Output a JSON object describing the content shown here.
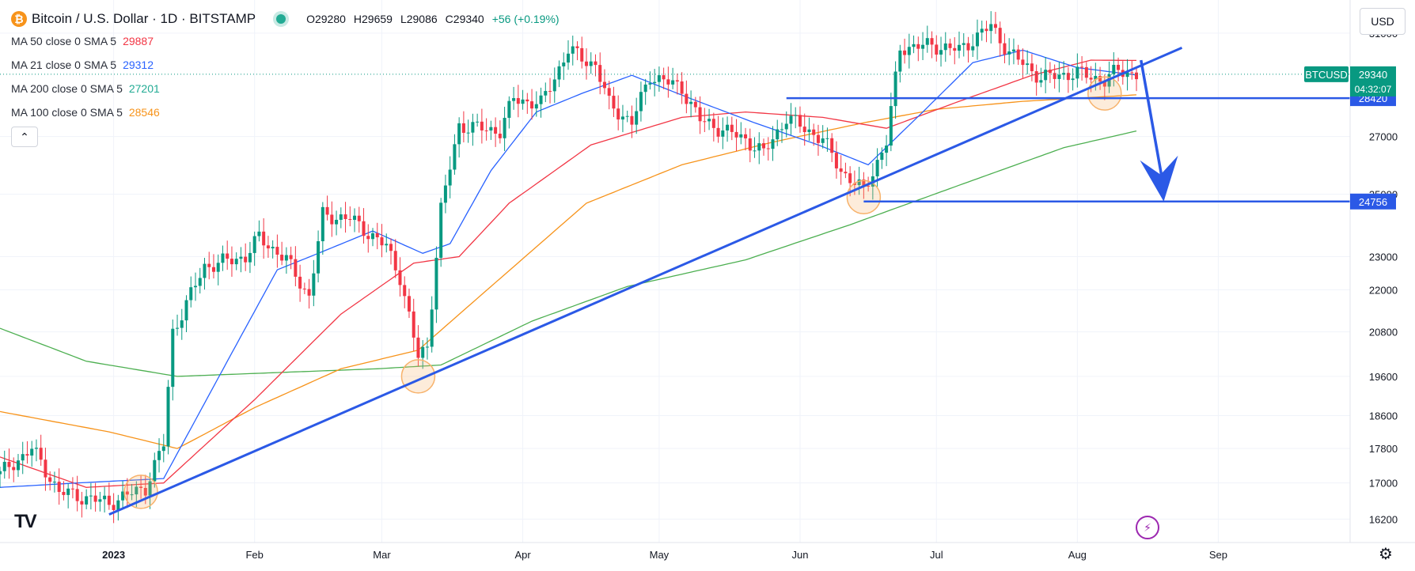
{
  "header": {
    "title": "Bitcoin / U.S. Dollar · 1D · BITSTAMP",
    "coin_icon": "bitcoin-icon",
    "ohlc": {
      "open": "O29280",
      "high": "H29659",
      "low": "L29086",
      "close": "C29340",
      "change": "+56 (+0.19%)"
    }
  },
  "legend": [
    {
      "label": "MA 50 close 0 SMA 5",
      "value": "29887",
      "color": "#f23645"
    },
    {
      "label": "MA 21 close 0 SMA 5",
      "value": "29312",
      "color": "#2962ff"
    },
    {
      "label": "MA 200 close 0 SMA 5",
      "value": "27201",
      "color": "#22ab94"
    },
    {
      "label": "MA 100 close 0 SMA 5",
      "value": "28546",
      "color": "#f7931a"
    }
  ],
  "currency": "USD",
  "colors": {
    "up": "#089981",
    "down": "#f23645",
    "ma21": "#2962ff",
    "ma50": "#f23645",
    "ma100": "#f7931a",
    "ma200": "#4caf50",
    "drawing": "#2b59e6",
    "highlight": "#f7b26b"
  },
  "chart_data": {
    "type": "candlestick",
    "x_range": [
      "2022-12-07",
      "2023-09-30"
    ],
    "y_range": [
      15700,
      32400
    ],
    "y_scale": "log",
    "y_ticks": [
      16200,
      17000,
      17800,
      18600,
      19600,
      20800,
      22000,
      23000,
      25000,
      27000,
      31000
    ],
    "x_ticks": [
      {
        "label": "2023",
        "date": "2023-01-01"
      },
      {
        "label": "Feb",
        "date": "2023-02-01"
      },
      {
        "label": "Mar",
        "date": "2023-03-01"
      },
      {
        "label": "Apr",
        "date": "2023-04-01"
      },
      {
        "label": "May",
        "date": "2023-05-01"
      },
      {
        "label": "Jun",
        "date": "2023-06-01"
      },
      {
        "label": "Jul",
        "date": "2023-07-01"
      },
      {
        "label": "Aug",
        "date": "2023-08-01"
      },
      {
        "label": "Sep",
        "date": "2023-09-01"
      }
    ],
    "anchors": [
      [
        "2022-12-07",
        17200
      ],
      [
        "2022-12-14",
        17800
      ],
      [
        "2022-12-20",
        16800
      ],
      [
        "2022-12-31",
        16550
      ],
      [
        "2023-01-08",
        16900
      ],
      [
        "2023-01-12",
        17900
      ],
      [
        "2023-01-14",
        20800
      ],
      [
        "2023-01-21",
        22700
      ],
      [
        "2023-01-30",
        23000
      ],
      [
        "2023-02-02",
        23600
      ],
      [
        "2023-02-08",
        22900
      ],
      [
        "2023-02-13",
        21800
      ],
      [
        "2023-02-16",
        24300
      ],
      [
        "2023-02-22",
        24200
      ],
      [
        "2023-03-02",
        23300
      ],
      [
        "2023-03-05",
        22400
      ],
      [
        "2023-03-09",
        20100
      ],
      [
        "2023-03-11",
        20400
      ],
      [
        "2023-03-14",
        24500
      ],
      [
        "2023-03-18",
        27400
      ],
      [
        "2023-03-27",
        27200
      ],
      [
        "2023-03-30",
        28400
      ],
      [
        "2023-04-05",
        28200
      ],
      [
        "2023-04-11",
        30300
      ],
      [
        "2023-04-17",
        29700
      ],
      [
        "2023-04-20",
        28200
      ],
      [
        "2023-04-25",
        27500
      ],
      [
        "2023-04-29",
        29300
      ],
      [
        "2023-05-06",
        28800
      ],
      [
        "2023-05-10",
        27600
      ],
      [
        "2023-05-20",
        26900
      ],
      [
        "2023-05-24",
        26400
      ],
      [
        "2023-05-29",
        27700
      ],
      [
        "2023-06-06",
        26900
      ],
      [
        "2023-06-10",
        25800
      ],
      [
        "2023-06-15",
        25100
      ],
      [
        "2023-06-20",
        26800
      ],
      [
        "2023-06-23",
        30400
      ],
      [
        "2023-06-30",
        30500
      ],
      [
        "2023-07-06",
        30300
      ],
      [
        "2023-07-13",
        31300
      ],
      [
        "2023-07-17",
        30200
      ],
      [
        "2023-07-24",
        29200
      ],
      [
        "2023-08-01",
        29400
      ],
      [
        "2023-08-07",
        29100
      ],
      [
        "2023-08-10",
        29500
      ],
      [
        "2023-08-14",
        29340
      ]
    ],
    "moving_averages": {
      "ma21": [
        [
          "2022-12-07",
          16900
        ],
        [
          "2022-12-24",
          17000
        ],
        [
          "2023-01-12",
          17100
        ],
        [
          "2023-01-26",
          20000
        ],
        [
          "2023-02-06",
          22600
        ],
        [
          "2023-02-15",
          23100
        ],
        [
          "2023-02-27",
          23800
        ],
        [
          "2023-03-10",
          23100
        ],
        [
          "2023-03-16",
          23400
        ],
        [
          "2023-03-25",
          25800
        ],
        [
          "2023-04-04",
          27900
        ],
        [
          "2023-04-14",
          28600
        ],
        [
          "2023-04-25",
          29300
        ],
        [
          "2023-05-08",
          28400
        ],
        [
          "2023-05-22",
          27500
        ],
        [
          "2023-06-05",
          26700
        ],
        [
          "2023-06-16",
          26000
        ],
        [
          "2023-06-28",
          27900
        ],
        [
          "2023-07-09",
          29800
        ],
        [
          "2023-07-20",
          30300
        ],
        [
          "2023-08-01",
          29600
        ],
        [
          "2023-08-14",
          29312
        ]
      ],
      "ma50": [
        [
          "2022-12-07",
          17600
        ],
        [
          "2022-12-26",
          16900
        ],
        [
          "2023-01-12",
          17000
        ],
        [
          "2023-02-01",
          19000
        ],
        [
          "2023-02-20",
          21300
        ],
        [
          "2023-03-08",
          22800
        ],
        [
          "2023-03-18",
          23000
        ],
        [
          "2023-03-29",
          24700
        ],
        [
          "2023-04-16",
          26700
        ],
        [
          "2023-05-06",
          27700
        ],
        [
          "2023-05-20",
          27900
        ],
        [
          "2023-06-06",
          27700
        ],
        [
          "2023-06-20",
          27300
        ],
        [
          "2023-07-06",
          28300
        ],
        [
          "2023-07-22",
          29300
        ],
        [
          "2023-08-04",
          29900
        ],
        [
          "2023-08-14",
          29887
        ]
      ],
      "ma100": [
        [
          "2022-12-07",
          18700
        ],
        [
          "2022-12-31",
          18200
        ],
        [
          "2023-01-15",
          17800
        ],
        [
          "2023-02-01",
          18800
        ],
        [
          "2023-02-20",
          19800
        ],
        [
          "2023-03-09",
          20300
        ],
        [
          "2023-03-25",
          22100
        ],
        [
          "2023-04-15",
          24700
        ],
        [
          "2023-05-06",
          26000
        ],
        [
          "2023-05-26",
          26800
        ],
        [
          "2023-06-15",
          27500
        ],
        [
          "2023-07-01",
          28000
        ],
        [
          "2023-07-20",
          28300
        ],
        [
          "2023-08-14",
          28546
        ]
      ],
      "ma200": [
        [
          "2022-12-07",
          20900
        ],
        [
          "2022-12-26",
          20000
        ],
        [
          "2023-01-15",
          19600
        ],
        [
          "2023-02-06",
          19700
        ],
        [
          "2023-02-28",
          19800
        ],
        [
          "2023-03-14",
          19900
        ],
        [
          "2023-04-03",
          21100
        ],
        [
          "2023-04-24",
          22100
        ],
        [
          "2023-05-20",
          22900
        ],
        [
          "2023-06-12",
          24000
        ],
        [
          "2023-07-06",
          25300
        ],
        [
          "2023-07-29",
          26600
        ],
        [
          "2023-08-14",
          27201
        ]
      ]
    },
    "trendline": {
      "from": [
        "2022-12-31",
        16300
      ],
      "to": [
        "2023-08-24",
        30400
      ],
      "color": "#2b59e6"
    },
    "horizontal_levels": [
      {
        "value": 28420,
        "label": "28420",
        "from": "2023-05-29"
      },
      {
        "value": 24756,
        "label": "24756",
        "from": "2023-06-15"
      }
    ],
    "current_price": {
      "symbol": "BTCUSD",
      "price": "29340",
      "countdown": "04:32:07",
      "value": 29340
    },
    "highlight_circles": [
      [
        "2023-01-07",
        16800
      ],
      [
        "2023-03-09",
        19600
      ],
      [
        "2023-06-15",
        24900
      ],
      [
        "2023-08-07",
        28600
      ]
    ],
    "arrow": {
      "from": [
        "2023-08-15",
        29900
      ],
      "to": [
        "2023-08-20",
        24756
      ]
    }
  },
  "footer": {
    "logo": "TV",
    "bolt_icon": "lightning-icon",
    "gear_icon": "gear-icon"
  }
}
